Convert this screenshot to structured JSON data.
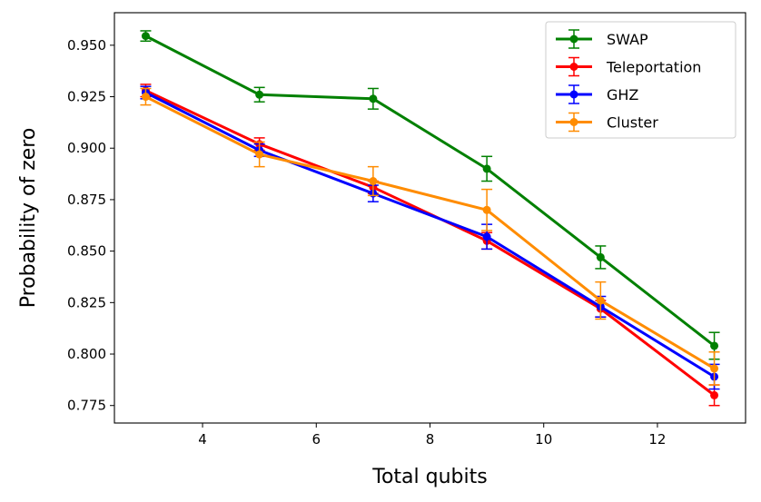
{
  "chart_data": {
    "type": "line",
    "title": "",
    "xlabel": "Total qubits",
    "ylabel": "Probability of zero",
    "xlim": [
      2.45,
      13.55
    ],
    "ylim": [
      0.7665,
      0.9658
    ],
    "xticks": [
      4,
      6,
      8,
      10,
      12
    ],
    "yticks": [
      0.775,
      0.8,
      0.825,
      0.85,
      0.875,
      0.9,
      0.925,
      0.95
    ],
    "xtick_labels": [
      "4",
      "6",
      "8",
      "10",
      "12"
    ],
    "ytick_labels": [
      "0.775",
      "0.800",
      "0.825",
      "0.850",
      "0.875",
      "0.900",
      "0.925",
      "0.950"
    ],
    "legend_position": "top-right",
    "x": [
      3,
      5,
      7,
      9,
      11,
      13
    ],
    "series": [
      {
        "name": "SWAP",
        "color": "#008000",
        "values": [
          0.9545,
          0.926,
          0.924,
          0.89,
          0.847,
          0.804
        ],
        "errors": [
          0.0025,
          0.0035,
          0.005,
          0.006,
          0.0055,
          0.0065
        ]
      },
      {
        "name": "Teleportation",
        "color": "#ff0000",
        "values": [
          0.928,
          0.902,
          0.881,
          0.855,
          0.822,
          0.78
        ],
        "errors": [
          0.003,
          0.003,
          0.003,
          0.004,
          0.004,
          0.005
        ]
      },
      {
        "name": "GHZ",
        "color": "#0000ff",
        "values": [
          0.927,
          0.899,
          0.878,
          0.857,
          0.823,
          0.789
        ],
        "errors": [
          0.003,
          0.003,
          0.004,
          0.006,
          0.005,
          0.006
        ]
      },
      {
        "name": "Cluster",
        "color": "#ff8c00",
        "values": [
          0.925,
          0.897,
          0.884,
          0.87,
          0.826,
          0.793
        ],
        "errors": [
          0.004,
          0.006,
          0.007,
          0.01,
          0.009,
          0.008
        ]
      }
    ]
  }
}
